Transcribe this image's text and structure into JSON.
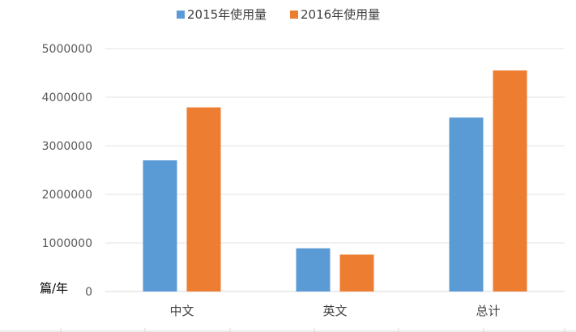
{
  "chart_data": {
    "type": "bar",
    "categories": [
      "中文",
      "英文",
      "总计"
    ],
    "series": [
      {
        "name": "2015年使用量",
        "color": "#5b9bd5",
        "values": [
          2700000,
          890000,
          3580000
        ]
      },
      {
        "name": "2016年使用量",
        "color": "#ed7d31",
        "values": [
          3790000,
          760000,
          4550000
        ]
      }
    ],
    "ylim": [
      0,
      5000000
    ],
    "yticks": [
      "0",
      "1000000",
      "2000000",
      "3000000",
      "4000000",
      "5000000"
    ],
    "ylabel": "篇/年",
    "xlabel": "",
    "title": "",
    "grid": true,
    "legend_position": "top"
  }
}
